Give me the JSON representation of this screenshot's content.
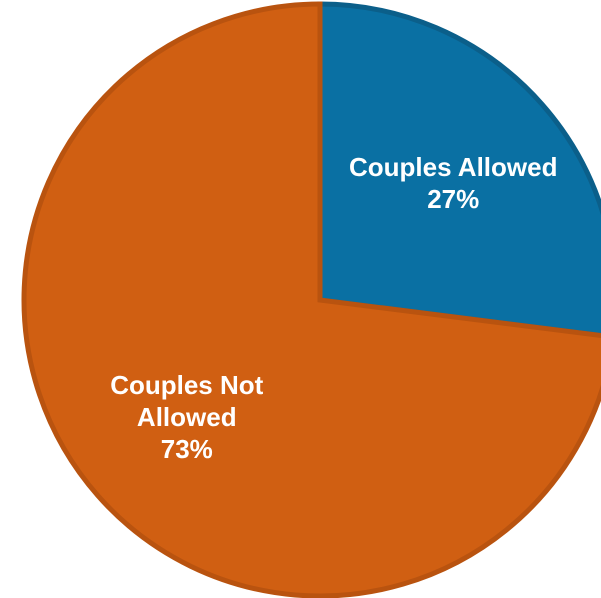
{
  "chart_data": {
    "type": "pie",
    "categories": [
      "Couples Allowed",
      "Couples Not Allowed"
    ],
    "values": [
      27,
      73
    ],
    "value_labels": [
      "27%",
      "73%"
    ],
    "colors": [
      "#0a70a3",
      "#d05f12"
    ],
    "edge_colors": [
      "#0b5f8a",
      "#b9530f"
    ]
  }
}
